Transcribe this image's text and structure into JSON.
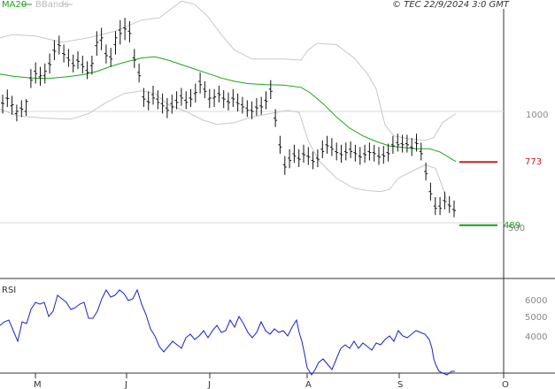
{
  "header": {
    "left_legend": [
      {
        "label": "MA20",
        "color": "#1aa51a"
      },
      {
        "label": "BBands",
        "color": "#bbbbbb"
      }
    ],
    "copyright": "© TEC 22/9/2024 3:0 GMT"
  },
  "chart_data": [
    {
      "type": "ohlc",
      "title": "",
      "x_months": [
        "M",
        "J",
        "J",
        "A",
        "S",
        "O"
      ],
      "y_ticks": [
        1000,
        500
      ],
      "ylim": [
        170,
        1570
      ],
      "levels": [
        {
          "label": "773",
          "value": 773,
          "color": "#c81e1e"
        },
        {
          "label": "489",
          "value": 489,
          "color": "#1a9a1a"
        }
      ],
      "ohlc": [
        [
          1038,
          1075,
          990,
          1035
        ],
        [
          1060,
          1098,
          1020,
          1058
        ],
        [
          1025,
          1070,
          985,
          1030
        ],
        [
          990,
          1030,
          955,
          1000
        ],
        [
          1015,
          1050,
          975,
          1010
        ],
        [
          1000,
          1055,
          980,
          1045
        ],
        [
          1150,
          1190,
          1105,
          1140
        ],
        [
          1180,
          1220,
          1125,
          1170
        ],
        [
          1155,
          1200,
          1115,
          1160
        ],
        [
          1160,
          1215,
          1125,
          1180
        ],
        [
          1215,
          1260,
          1170,
          1210
        ],
        [
          1275,
          1320,
          1230,
          1270
        ],
        [
          1300,
          1340,
          1255,
          1295
        ],
        [
          1260,
          1300,
          1220,
          1255
        ],
        [
          1240,
          1280,
          1200,
          1230
        ],
        [
          1215,
          1255,
          1175,
          1205
        ],
        [
          1230,
          1270,
          1190,
          1225
        ],
        [
          1210,
          1250,
          1170,
          1200
        ],
        [
          1185,
          1225,
          1145,
          1175
        ],
        [
          1205,
          1250,
          1165,
          1215
        ],
        [
          1295,
          1360,
          1250,
          1310
        ],
        [
          1320,
          1375,
          1275,
          1330
        ],
        [
          1260,
          1300,
          1215,
          1250
        ],
        [
          1245,
          1285,
          1200,
          1235
        ],
        [
          1300,
          1360,
          1255,
          1330
        ],
        [
          1365,
          1410,
          1300,
          1350
        ],
        [
          1375,
          1420,
          1320,
          1370
        ],
        [
          1360,
          1405,
          1310,
          1350
        ],
        [
          1240,
          1280,
          1195,
          1230
        ],
        [
          1175,
          1215,
          1130,
          1160
        ],
        [
          1065,
          1105,
          1020,
          1055
        ],
        [
          1045,
          1090,
          1005,
          1040
        ],
        [
          1075,
          1115,
          1030,
          1060
        ],
        [
          1055,
          1095,
          1010,
          1040
        ],
        [
          1035,
          1080,
          990,
          1025
        ],
        [
          1015,
          1060,
          970,
          1005
        ],
        [
          1035,
          1075,
          990,
          1020
        ],
        [
          1050,
          1090,
          1010,
          1040
        ],
        [
          1070,
          1105,
          1025,
          1060
        ],
        [
          1050,
          1090,
          1010,
          1040
        ],
        [
          1060,
          1100,
          1020,
          1055
        ],
        [
          1080,
          1125,
          1040,
          1085
        ],
        [
          1135,
          1175,
          1080,
          1120
        ],
        [
          1100,
          1135,
          1060,
          1090
        ],
        [
          1055,
          1100,
          1015,
          1060
        ],
        [
          1060,
          1100,
          1020,
          1065
        ],
        [
          1080,
          1115,
          1040,
          1075
        ],
        [
          1060,
          1095,
          1015,
          1055
        ],
        [
          1045,
          1085,
          1005,
          1040
        ],
        [
          1060,
          1100,
          1020,
          1055
        ],
        [
          1040,
          1080,
          1000,
          1035
        ],
        [
          1030,
          1065,
          990,
          1020
        ],
        [
          1015,
          1050,
          975,
          1005
        ],
        [
          1005,
          1045,
          965,
          1000
        ],
        [
          1020,
          1060,
          980,
          1015
        ],
        [
          1025,
          1065,
          985,
          1020
        ],
        [
          1050,
          1090,
          1010,
          1045
        ],
        [
          1100,
          1140,
          1055,
          1090
        ],
        [
          970,
          1010,
          930,
          960
        ],
        [
          850,
          890,
          810,
          840
        ],
        [
          760,
          800,
          715,
          750
        ],
        [
          790,
          830,
          745,
          780
        ],
        [
          810,
          850,
          770,
          800
        ],
        [
          790,
          830,
          750,
          785
        ],
        [
          810,
          850,
          770,
          805
        ],
        [
          800,
          840,
          760,
          795
        ],
        [
          780,
          820,
          740,
          775
        ],
        [
          790,
          830,
          750,
          785
        ],
        [
          830,
          870,
          790,
          820
        ],
        [
          850,
          890,
          810,
          845
        ],
        [
          840,
          880,
          800,
          830
        ],
        [
          820,
          860,
          780,
          815
        ],
        [
          810,
          850,
          770,
          805
        ],
        [
          820,
          860,
          780,
          815
        ],
        [
          830,
          865,
          790,
          820
        ],
        [
          815,
          850,
          775,
          810
        ],
        [
          800,
          840,
          760,
          795
        ],
        [
          810,
          850,
          770,
          805
        ],
        [
          820,
          860,
          780,
          815
        ],
        [
          815,
          850,
          775,
          810
        ],
        [
          800,
          840,
          760,
          795
        ],
        [
          805,
          845,
          765,
          800
        ],
        [
          815,
          855,
          775,
          810
        ],
        [
          850,
          890,
          810,
          845
        ],
        [
          860,
          900,
          820,
          850
        ],
        [
          855,
          895,
          815,
          850
        ],
        [
          855,
          895,
          815,
          850
        ],
        [
          840,
          880,
          800,
          835
        ],
        [
          860,
          900,
          820,
          855
        ],
        [
          820,
          860,
          780,
          810
        ],
        [
          730,
          770,
          690,
          720
        ],
        [
          640,
          680,
          600,
          630
        ],
        [
          575,
          615,
          535,
          565
        ],
        [
          575,
          615,
          535,
          565
        ],
        [
          600,
          640,
          560,
          595
        ],
        [
          580,
          620,
          545,
          575
        ],
        [
          560,
          600,
          525,
          555
        ]
      ],
      "ma20": [
        [
          0,
          1168
        ],
        [
          15,
          1158
        ],
        [
          35,
          1150
        ],
        [
          55,
          1148
        ],
        [
          75,
          1155
        ],
        [
          95,
          1166
        ],
        [
          110,
          1180
        ],
        [
          125,
          1202
        ],
        [
          140,
          1220
        ],
        [
          160,
          1240
        ],
        [
          175,
          1245
        ],
        [
          190,
          1230
        ],
        [
          205,
          1210
        ],
        [
          220,
          1190
        ],
        [
          235,
          1170
        ],
        [
          250,
          1150
        ],
        [
          265,
          1135
        ],
        [
          280,
          1125
        ],
        [
          300,
          1120
        ],
        [
          320,
          1118
        ],
        [
          340,
          1108
        ],
        [
          350,
          1085
        ],
        [
          365,
          1035
        ],
        [
          380,
          975
        ],
        [
          395,
          925
        ],
        [
          410,
          890
        ],
        [
          425,
          865
        ],
        [
          440,
          845
        ],
        [
          455,
          838
        ],
        [
          470,
          832
        ],
        [
          485,
          832
        ],
        [
          497,
          818
        ],
        [
          515,
          775
        ]
      ],
      "bb_upper": [
        [
          0,
          1330
        ],
        [
          15,
          1345
        ],
        [
          40,
          1338
        ],
        [
          70,
          1310
        ],
        [
          100,
          1330
        ],
        [
          130,
          1360
        ],
        [
          160,
          1410
        ],
        [
          180,
          1420
        ],
        [
          205,
          1495
        ],
        [
          220,
          1480
        ],
        [
          235,
          1425
        ],
        [
          250,
          1345
        ],
        [
          265,
          1275
        ],
        [
          285,
          1235
        ],
        [
          300,
          1235
        ],
        [
          320,
          1235
        ],
        [
          340,
          1230
        ],
        [
          348,
          1275
        ],
        [
          358,
          1305
        ],
        [
          380,
          1300
        ],
        [
          400,
          1240
        ],
        [
          415,
          1170
        ],
        [
          425,
          1100
        ],
        [
          430,
          1020
        ],
        [
          435,
          940
        ],
        [
          445,
          890
        ],
        [
          460,
          878
        ],
        [
          480,
          870
        ],
        [
          490,
          882
        ],
        [
          500,
          950
        ],
        [
          515,
          990
        ]
      ],
      "bb_lower": [
        [
          0,
          1010
        ],
        [
          20,
          980
        ],
        [
          50,
          970
        ],
        [
          80,
          965
        ],
        [
          100,
          990
        ],
        [
          120,
          1040
        ],
        [
          140,
          1080
        ],
        [
          160,
          1092
        ],
        [
          175,
          1080
        ],
        [
          190,
          1030
        ],
        [
          210,
          1000
        ],
        [
          230,
          960
        ],
        [
          245,
          942
        ],
        [
          265,
          950
        ],
        [
          285,
          975
        ],
        [
          305,
          990
        ],
        [
          325,
          1005
        ],
        [
          338,
          995
        ],
        [
          348,
          870
        ],
        [
          360,
          780
        ],
        [
          380,
          700
        ],
        [
          400,
          655
        ],
        [
          415,
          645
        ],
        [
          430,
          640
        ],
        [
          440,
          650
        ],
        [
          450,
          700
        ],
        [
          470,
          740
        ],
        [
          480,
          760
        ],
        [
          492,
          745
        ],
        [
          500,
          660
        ],
        [
          505,
          600
        ]
      ],
      "rsi_ticks": [
        "6000",
        "5000",
        "4000"
      ],
      "rsi": [
        [
          0,
          1
        ],
        [
          5,
          3
        ],
        [
          10,
          4
        ],
        [
          15,
          -2
        ],
        [
          20,
          -8
        ],
        [
          25,
          3
        ],
        [
          30,
          2
        ],
        [
          35,
          10
        ],
        [
          40,
          14
        ],
        [
          45,
          13
        ],
        [
          50,
          14
        ],
        [
          55,
          6
        ],
        [
          60,
          9
        ],
        [
          65,
          18
        ],
        [
          70,
          16
        ],
        [
          75,
          14
        ],
        [
          80,
          10
        ],
        [
          85,
          11
        ],
        [
          90,
          13
        ],
        [
          95,
          14
        ],
        [
          100,
          5
        ],
        [
          105,
          5
        ],
        [
          110,
          9
        ],
        [
          115,
          16
        ],
        [
          120,
          21
        ],
        [
          125,
          17
        ],
        [
          130,
          18
        ],
        [
          135,
          21
        ],
        [
          140,
          19
        ],
        [
          145,
          15
        ],
        [
          150,
          16
        ],
        [
          155,
          21
        ],
        [
          160,
          13
        ],
        [
          165,
          7
        ],
        [
          170,
          -1
        ],
        [
          175,
          -5
        ],
        [
          180,
          -11
        ],
        [
          185,
          -14
        ],
        [
          190,
          -11
        ],
        [
          195,
          -8
        ],
        [
          200,
          -10
        ],
        [
          205,
          -12
        ],
        [
          210,
          -6
        ],
        [
          215,
          -4
        ],
        [
          220,
          -7
        ],
        [
          225,
          -5
        ],
        [
          230,
          -2
        ],
        [
          235,
          -6
        ],
        [
          240,
          -2
        ],
        [
          245,
          1
        ],
        [
          250,
          -3
        ],
        [
          255,
          -2
        ],
        [
          260,
          4
        ],
        [
          265,
          0
        ],
        [
          270,
          6
        ],
        [
          275,
          2
        ],
        [
          280,
          -3
        ],
        [
          285,
          -6
        ],
        [
          290,
          -3
        ],
        [
          295,
          3
        ],
        [
          300,
          -2
        ],
        [
          305,
          -4
        ],
        [
          310,
          -1
        ],
        [
          315,
          -3
        ],
        [
          320,
          -2
        ],
        [
          325,
          -5
        ],
        [
          330,
          0
        ],
        [
          335,
          4
        ],
        [
          338,
          -3
        ],
        [
          341,
          -8
        ],
        [
          344,
          -15
        ],
        [
          347,
          -23
        ],
        [
          352,
          -27
        ],
        [
          356,
          -24
        ],
        [
          360,
          -20
        ],
        [
          365,
          -18
        ],
        [
          370,
          -21
        ],
        [
          375,
          -24
        ],
        [
          380,
          -18
        ],
        [
          385,
          -12
        ],
        [
          390,
          -10
        ],
        [
          395,
          -12
        ],
        [
          400,
          -8
        ],
        [
          405,
          -12
        ],
        [
          410,
          -9
        ],
        [
          415,
          -11
        ],
        [
          420,
          -13
        ],
        [
          425,
          -9
        ],
        [
          430,
          -10
        ],
        [
          435,
          -7
        ],
        [
          440,
          -5
        ],
        [
          445,
          -8
        ],
        [
          450,
          -2
        ],
        [
          455,
          -5
        ],
        [
          460,
          -6
        ],
        [
          465,
          -4
        ],
        [
          470,
          -2
        ],
        [
          475,
          -3
        ],
        [
          480,
          -4
        ],
        [
          485,
          -7
        ],
        [
          488,
          -12
        ],
        [
          490,
          -18
        ],
        [
          493,
          -22
        ],
        [
          496,
          -25
        ],
        [
          500,
          -26
        ],
        [
          505,
          -27
        ],
        [
          510,
          -25
        ],
        [
          514,
          -25
        ]
      ]
    }
  ]
}
